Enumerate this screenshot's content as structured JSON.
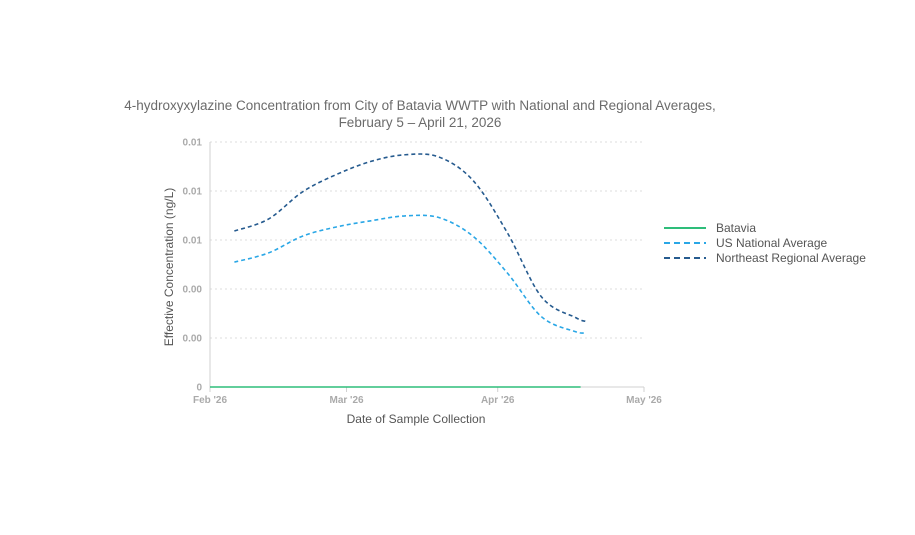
{
  "chart_data": {
    "type": "line",
    "title": "4-hydroxyxylazine Concentration from City of Batavia WWTP with National and Regional Averages,",
    "subtitle": "February 5 – April 21, 2026",
    "xlabel": "Date of Sample Collection",
    "ylabel": "Effective Concentration (ng/L)",
    "x_ticks": [
      "Feb '26",
      "Mar '26",
      "Apr '26",
      "May '26"
    ],
    "y_tick_labels": [
      "0",
      "0.00",
      "0.00",
      "0.01",
      "0.01",
      "0.01"
    ],
    "ylim": [
      0,
      0.0125
    ],
    "grid": true,
    "legend_position": "right",
    "series": [
      {
        "name": "Batavia",
        "color": "#2ebd7a",
        "dash": "solid",
        "x": [
          "2026-02-01",
          "2026-04-18"
        ],
        "y": [
          0,
          0
        ]
      },
      {
        "name": "US National Average",
        "color": "#2aa7e6",
        "dash": "dashed",
        "x": [
          "2026-02-06",
          "2026-02-13",
          "2026-02-20",
          "2026-02-27",
          "2026-03-06",
          "2026-03-13",
          "2026-03-20",
          "2026-03-27",
          "2026-04-03",
          "2026-04-10",
          "2026-04-17",
          "2026-04-19"
        ],
        "y": [
          0.00637,
          0.00684,
          0.0077,
          0.00817,
          0.00848,
          0.00873,
          0.00864,
          0.00768,
          0.00581,
          0.00358,
          0.00282,
          0.00278
        ]
      },
      {
        "name": "Northeast Regional Average",
        "color": "#265b8f",
        "dash": "dashed",
        "x": [
          "2026-02-06",
          "2026-02-13",
          "2026-02-20",
          "2026-02-27",
          "2026-03-06",
          "2026-03-13",
          "2026-03-20",
          "2026-03-27",
          "2026-04-03",
          "2026-04-10",
          "2026-04-17",
          "2026-04-19"
        ],
        "y": [
          0.00796,
          0.00857,
          0.00996,
          0.01085,
          0.01151,
          0.01185,
          0.01173,
          0.01052,
          0.00786,
          0.00459,
          0.00354,
          0.00335
        ]
      }
    ]
  }
}
